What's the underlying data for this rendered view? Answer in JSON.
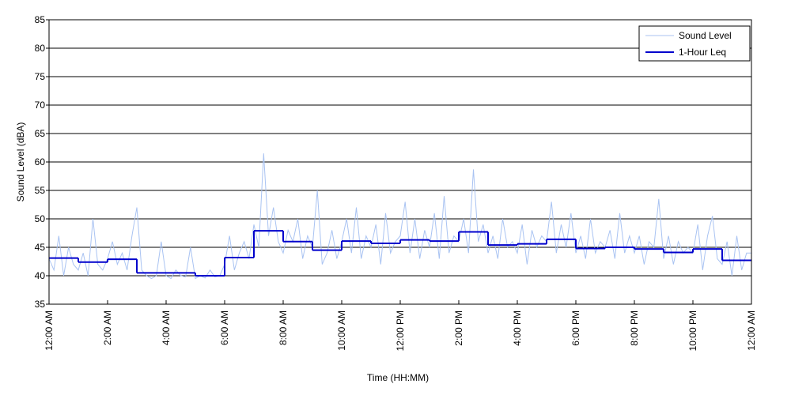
{
  "chart_data": {
    "type": "line",
    "xlabel": "Time (HH:MM)",
    "ylabel": "Sound Level (dBA)",
    "xlim": [
      0,
      1440
    ],
    "xticks": [
      {
        "value": 0,
        "label": "12:00 AM"
      },
      {
        "value": 120,
        "label": "2:00 AM"
      },
      {
        "value": 240,
        "label": "4:00 AM"
      },
      {
        "value": 360,
        "label": "6:00 AM"
      },
      {
        "value": 480,
        "label": "8:00 AM"
      },
      {
        "value": 600,
        "label": "10:00 AM"
      },
      {
        "value": 720,
        "label": "12:00 PM"
      },
      {
        "value": 840,
        "label": "2:00 PM"
      },
      {
        "value": 960,
        "label": "4:00 PM"
      },
      {
        "value": 1080,
        "label": "6:00 PM"
      },
      {
        "value": 1200,
        "label": "8:00 PM"
      },
      {
        "value": 1320,
        "label": "10:00 PM"
      },
      {
        "value": 1440,
        "label": "12:00 AM"
      }
    ],
    "ylim": [
      35,
      85
    ],
    "yticks": [
      35,
      40,
      45,
      50,
      55,
      60,
      65,
      70,
      75,
      80,
      85
    ],
    "grid": true,
    "legend": "top-right",
    "series": [
      {
        "name": "Sound Level",
        "color": "#a9c3f2",
        "style": "line",
        "x": [
          0,
          10,
          20,
          30,
          40,
          50,
          60,
          70,
          80,
          90,
          100,
          110,
          120,
          130,
          140,
          150,
          160,
          170,
          180,
          190,
          200,
          210,
          220,
          230,
          240,
          250,
          260,
          270,
          280,
          290,
          300,
          310,
          320,
          330,
          340,
          350,
          360,
          370,
          380,
          390,
          400,
          410,
          420,
          430,
          440,
          450,
          460,
          470,
          480,
          490,
          500,
          510,
          520,
          530,
          540,
          550,
          560,
          570,
          580,
          590,
          600,
          610,
          620,
          630,
          640,
          650,
          660,
          670,
          680,
          690,
          700,
          710,
          720,
          730,
          740,
          750,
          760,
          770,
          780,
          790,
          800,
          810,
          820,
          830,
          840,
          850,
          860,
          870,
          880,
          890,
          900,
          910,
          920,
          930,
          940,
          950,
          960,
          970,
          980,
          990,
          1000,
          1010,
          1020,
          1030,
          1040,
          1050,
          1060,
          1070,
          1080,
          1090,
          1100,
          1110,
          1120,
          1130,
          1140,
          1150,
          1160,
          1170,
          1180,
          1190,
          1200,
          1210,
          1220,
          1230,
          1240,
          1250,
          1260,
          1270,
          1280,
          1290,
          1300,
          1310,
          1320,
          1330,
          1340,
          1350,
          1360,
          1370,
          1380,
          1390,
          1400,
          1410,
          1420,
          1430,
          1440
        ],
        "values": [
          43,
          41,
          47,
          40,
          45,
          42,
          41,
          44,
          40,
          50,
          42,
          41,
          43,
          46,
          42,
          44,
          41,
          47,
          52,
          41,
          40,
          39.5,
          40,
          46,
          40,
          39.5,
          41,
          40,
          39.8,
          45,
          39.5,
          40,
          39.6,
          41,
          39.8,
          40,
          42,
          47,
          41,
          44,
          46,
          43,
          49,
          45,
          61.5,
          47,
          52,
          46,
          44,
          48,
          46,
          50,
          43,
          47,
          45,
          55,
          42,
          44,
          48,
          43,
          46,
          50,
          44,
          52,
          43,
          47,
          45,
          49,
          42,
          51,
          44,
          46,
          47,
          53,
          44,
          50,
          43,
          48,
          45,
          51,
          43,
          54,
          44,
          47,
          46,
          50,
          44,
          58.7,
          46,
          49,
          44,
          47,
          43,
          50,
          45,
          46,
          44,
          49,
          42,
          48,
          45,
          47,
          46,
          53,
          44,
          49,
          45,
          51,
          44,
          47,
          43,
          50,
          44,
          46,
          45,
          48,
          43,
          51,
          44,
          47,
          44,
          47,
          42,
          46,
          45,
          53.5,
          43,
          47,
          42,
          46,
          44,
          45,
          44,
          49,
          41,
          47,
          50.5,
          43,
          42,
          46,
          40,
          47,
          41,
          44,
          44
        ]
      },
      {
        "name": "1-Hour Leq",
        "color": "#0000cc",
        "style": "step",
        "x": [
          0,
          60,
          120,
          180,
          240,
          300,
          360,
          420,
          480,
          540,
          600,
          660,
          720,
          780,
          840,
          900,
          960,
          1020,
          1080,
          1140,
          1200,
          1260,
          1320,
          1380
        ],
        "values": [
          43.1,
          42.4,
          42.9,
          40.5,
          40.5,
          40.0,
          43.2,
          47.9,
          46.0,
          44.5,
          46.1,
          45.7,
          46.3,
          46.1,
          47.7,
          45.4,
          45.6,
          46.4,
          44.8,
          45.0,
          44.7,
          44.1,
          44.7,
          42.7
        ]
      }
    ]
  }
}
